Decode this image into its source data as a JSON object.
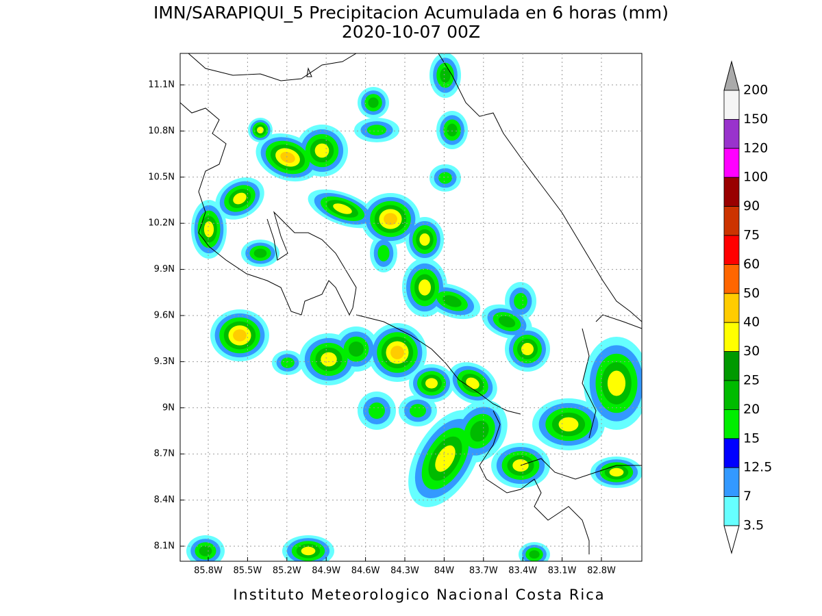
{
  "header": {
    "title": "IMN/SARAPIQUI_5 Precipitacion Acumulada en 6 horas (mm)",
    "subtitle": "2020-10-07 00Z"
  },
  "map": {
    "lon_labels": [
      "85.8W",
      "85.5W",
      "85.2W",
      "84.9W",
      "84.6W",
      "84.3W",
      "84W",
      "83.7W",
      "83.4W",
      "83.1W",
      "82.8W"
    ],
    "lat_labels": [
      "11.1N",
      "10.8N",
      "10.5N",
      "10.2N",
      "9.9N",
      "9.6N",
      "9.3N",
      "9N",
      "8.7N",
      "8.4N",
      "8.1N"
    ]
  },
  "colorbar": {
    "labels": [
      "200",
      "150",
      "120",
      "100",
      "90",
      "75",
      "60",
      "50",
      "40",
      "30",
      "25",
      "20",
      "15",
      "12.5",
      "7",
      "3.5"
    ],
    "colors": [
      "#f5f5f5",
      "#9933cc",
      "#ff00ff",
      "#990000",
      "#cc3300",
      "#ff0000",
      "#ff6600",
      "#ffcc00",
      "#ffff00",
      "#009900",
      "#00bb00",
      "#00ee00",
      "#0000ff",
      "#3399ff",
      "#66ffff"
    ],
    "over_color": "#aaaaaa",
    "under_color": "#ffffff"
  },
  "footer": "Instituto Meteorologico Nacional Costa Rica"
}
